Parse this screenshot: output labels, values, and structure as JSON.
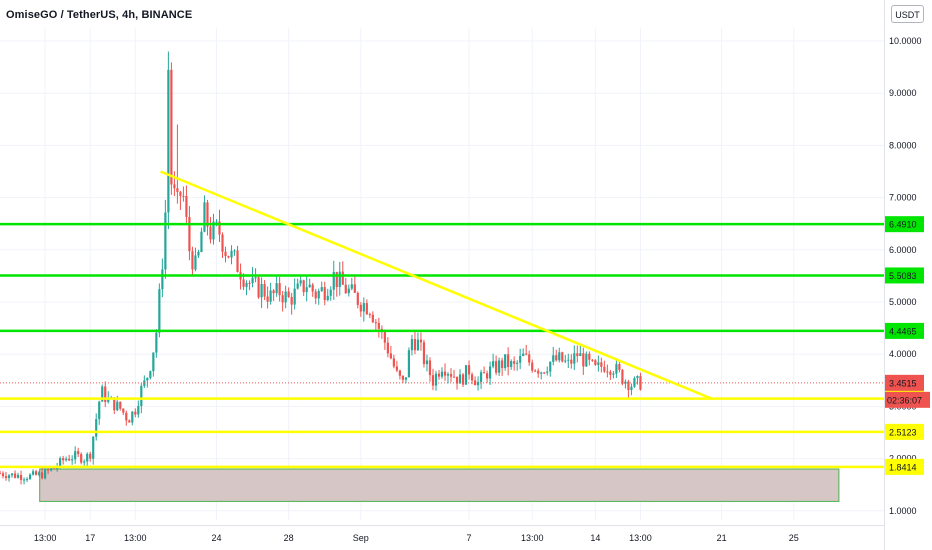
{
  "header": {
    "title": "OmiseGO / TetherUS, 4h, BINANCE",
    "currency_button": "USDT"
  },
  "colors": {
    "up": "#26a69a",
    "down": "#ef5350",
    "support_green": "#00e600",
    "trend_yellow": "#ffff00",
    "zone_fill": "#d7c6c6",
    "zone_border": "#4caf50",
    "price_label": "#ef5350"
  },
  "chart_data": {
    "type": "candlestick",
    "title": "OmiseGO / TetherUS, 4h, BINANCE",
    "ylim": [
      0.75,
      10.5
    ],
    "y_ticks": [
      "1.0000",
      "2.0000",
      "3.0000",
      "4.0000",
      "5.0000",
      "6.0000",
      "7.0000",
      "8.0000",
      "9.0000",
      "10.0000"
    ],
    "x_ticks": [
      {
        "label": "13:00",
        "day": 14.5
      },
      {
        "label": "17",
        "day": 17
      },
      {
        "label": "13:00",
        "day": 19.5
      },
      {
        "label": "24",
        "day": 24
      },
      {
        "label": "28",
        "day": 28
      },
      {
        "label": "Sep",
        "day": 32
      },
      {
        "label": "7",
        "day": 38
      },
      {
        "label": "13:00",
        "day": 41.5
      },
      {
        "label": "14",
        "day": 45
      },
      {
        "label": "13:00",
        "day": 47.5
      },
      {
        "label": "21",
        "day": 52
      },
      {
        "label": "25",
        "day": 56
      }
    ],
    "x_range_days": [
      12,
      61
    ],
    "price_path": [
      [
        12.0,
        1.72
      ],
      [
        12.8,
        1.68
      ],
      [
        13.6,
        1.66
      ],
      [
        14.4,
        1.7
      ],
      [
        15.0,
        1.82
      ],
      [
        15.6,
        2.0
      ],
      [
        16.2,
        2.05
      ],
      [
        16.7,
        2.0
      ],
      [
        17.0,
        2.1
      ],
      [
        17.3,
        2.7
      ],
      [
        17.6,
        3.3
      ],
      [
        17.9,
        3.15
      ],
      [
        18.3,
        3.05
      ],
      [
        18.7,
        2.95
      ],
      [
        19.1,
        2.75
      ],
      [
        19.5,
        2.95
      ],
      [
        19.8,
        3.3
      ],
      [
        20.1,
        3.5
      ],
      [
        20.4,
        3.9
      ],
      [
        20.7,
        4.5
      ],
      [
        21.0,
        5.8
      ],
      [
        21.2,
        6.9
      ],
      [
        21.35,
        9.8
      ],
      [
        21.5,
        7.3
      ],
      [
        21.8,
        6.8
      ],
      [
        22.1,
        7.2
      ],
      [
        22.5,
        6.0
      ],
      [
        22.9,
        5.6
      ],
      [
        23.3,
        6.7
      ],
      [
        23.7,
        6.3
      ],
      [
        24.1,
        6.4
      ],
      [
        24.5,
        6.0
      ],
      [
        25.0,
        5.8
      ],
      [
        25.5,
        5.5
      ],
      [
        26.0,
        5.3
      ],
      [
        26.5,
        5.25
      ],
      [
        27.0,
        5.1
      ],
      [
        27.5,
        5.2
      ],
      [
        28.0,
        5.05
      ],
      [
        28.5,
        5.2
      ],
      [
        29.0,
        5.35
      ],
      [
        29.5,
        5.15
      ],
      [
        30.0,
        5.25
      ],
      [
        30.5,
        5.5
      ],
      [
        31.0,
        5.3
      ],
      [
        31.5,
        5.15
      ],
      [
        32.0,
        5.0
      ],
      [
        32.5,
        4.9
      ],
      [
        33.0,
        4.5
      ],
      [
        33.5,
        4.1
      ],
      [
        34.0,
        3.6
      ],
      [
        34.4,
        3.4
      ],
      [
        34.8,
        4.3
      ],
      [
        35.2,
        4.2
      ],
      [
        35.6,
        3.8
      ],
      [
        36.0,
        3.5
      ],
      [
        36.5,
        3.8
      ],
      [
        37.0,
        3.65
      ],
      [
        37.5,
        3.5
      ],
      [
        38.0,
        3.7
      ],
      [
        38.5,
        3.45
      ],
      [
        39.0,
        3.65
      ],
      [
        39.5,
        3.75
      ],
      [
        40.0,
        3.85
      ],
      [
        40.5,
        3.75
      ],
      [
        41.0,
        3.95
      ],
      [
        41.5,
        3.8
      ],
      [
        42.0,
        3.7
      ],
      [
        42.5,
        3.85
      ],
      [
        43.0,
        3.9
      ],
      [
        43.5,
        3.8
      ],
      [
        44.0,
        4.0
      ],
      [
        44.5,
        3.85
      ],
      [
        45.0,
        3.7
      ],
      [
        45.5,
        3.8
      ],
      [
        46.0,
        3.75
      ],
      [
        46.5,
        3.55
      ],
      [
        47.0,
        3.42
      ],
      [
        47.5,
        3.45
      ]
    ],
    "horizontal_levels": [
      {
        "value": 6.491,
        "label": "6.4910",
        "color": "#00e600"
      },
      {
        "value": 5.5083,
        "label": "5.5083",
        "color": "#00e600"
      },
      {
        "value": 4.4465,
        "label": "4.4465",
        "color": "#00e600"
      },
      {
        "value": 3.1499,
        "label": "3.1499",
        "color": "#ffff00"
      },
      {
        "value": 2.5123,
        "label": "2.5123",
        "color": "#ffff00"
      },
      {
        "value": 1.8414,
        "label": "1.8414",
        "color": "#ffff00"
      }
    ],
    "trendline": {
      "from": {
        "day": 20.9,
        "price": 7.5
      },
      "to": {
        "day": 51.5,
        "price": 3.14
      }
    },
    "support_zone": {
      "day_from": 14.2,
      "day_to": 58.5,
      "price_low": 1.18,
      "price_high": 1.8
    },
    "current_price": {
      "value": 3.4515,
      "label": "3.4515",
      "countdown": "02:36:07"
    }
  }
}
